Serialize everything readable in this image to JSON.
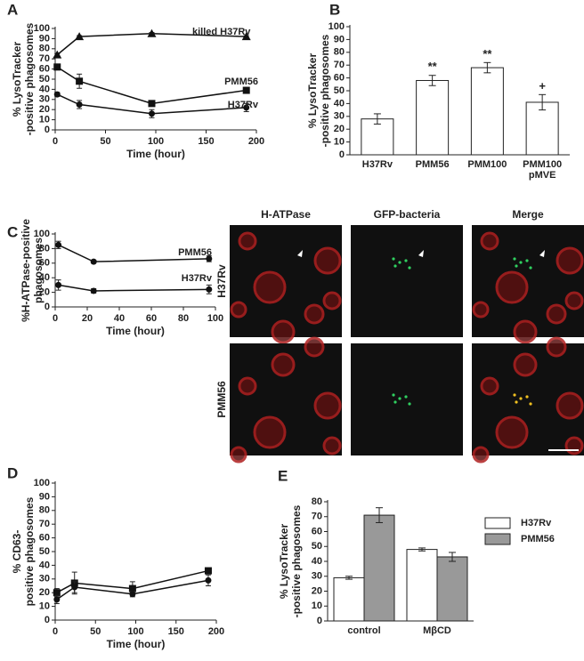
{
  "chart_data": [
    {
      "panel": "A",
      "type": "line",
      "ylabel": [
        "% LysoTracker",
        "-positive phagosomes"
      ],
      "xlabel": "Time (hour)",
      "x": [
        2,
        24,
        96,
        190
      ],
      "xlim": [
        0,
        200
      ],
      "xticks": [
        0,
        50,
        100,
        150,
        200
      ],
      "ylim": [
        0,
        100
      ],
      "yticks": [
        0,
        10,
        20,
        30,
        40,
        50,
        60,
        70,
        80,
        90,
        100
      ],
      "series": [
        {
          "name": "killed H37Rv",
          "marker": "triangle",
          "color": "#111111",
          "values": [
            74,
            92,
            95,
            92
          ],
          "errors": [
            1,
            1,
            1,
            1
          ]
        },
        {
          "name": "PMM56",
          "marker": "square",
          "color": "#111111",
          "values": [
            62,
            48,
            26,
            39
          ],
          "errors": [
            1,
            7,
            1,
            2
          ]
        },
        {
          "name": "H37Rv",
          "marker": "circle",
          "color": "#111111",
          "values": [
            35,
            25,
            16,
            22
          ],
          "errors": [
            2,
            4,
            4,
            4
          ]
        }
      ]
    },
    {
      "panel": "B",
      "type": "bar",
      "ylabel": [
        "% LysoTracker",
        "-positive phagosomes"
      ],
      "categories": [
        "H37Rv",
        "PMM56",
        "PMM100",
        "PMM100 pMVE"
      ],
      "values": [
        28,
        58,
        68,
        41
      ],
      "errors": [
        4,
        4,
        4,
        6
      ],
      "annotations": [
        null,
        "**",
        "**",
        "+"
      ],
      "color": "#ffffff",
      "ylim": [
        0,
        100
      ],
      "yticks": [
        0,
        10,
        20,
        30,
        40,
        50,
        60,
        70,
        80,
        90,
        100
      ]
    },
    {
      "panel": "C",
      "type": "line",
      "ylabel": [
        "%H-ATPase-positive",
        "phagosomes"
      ],
      "xlabel": "Time (hour)",
      "x": [
        2,
        24,
        96
      ],
      "xlim": [
        0,
        100
      ],
      "xticks": [
        0,
        20,
        40,
        60,
        80,
        100
      ],
      "ylim": [
        0,
        100
      ],
      "yticks": [
        0,
        20,
        40,
        60,
        80,
        100
      ],
      "series": [
        {
          "name": "PMM56",
          "marker": "circle",
          "color": "#111111",
          "values": [
            85,
            62,
            66
          ],
          "errors": [
            5,
            2,
            4
          ]
        },
        {
          "name": "H37Rv",
          "marker": "circle",
          "color": "#111111",
          "values": [
            30,
            22,
            24
          ],
          "errors": [
            7,
            3,
            6
          ]
        }
      ]
    },
    {
      "panel": "D",
      "type": "line",
      "ylabel": [
        "% CD63-",
        "positive phagosomes"
      ],
      "xlabel": "Time (hour)",
      "x": [
        2,
        24,
        96,
        190
      ],
      "xlim": [
        0,
        200
      ],
      "xticks": [
        0,
        50,
        100,
        150,
        200
      ],
      "ylim": [
        0,
        100
      ],
      "yticks": [
        0,
        10,
        20,
        30,
        40,
        50,
        60,
        70,
        80,
        90,
        100
      ],
      "series": [
        {
          "marker": "square",
          "color": "#111111",
          "values": [
            20,
            27,
            23,
            36
          ],
          "errors": [
            3,
            8,
            5,
            2
          ]
        },
        {
          "marker": "circle",
          "color": "#111111",
          "values": [
            15,
            24,
            19,
            29
          ],
          "errors": [
            3,
            4,
            2,
            4
          ]
        }
      ]
    },
    {
      "panel": "E",
      "type": "bar",
      "ylabel": [
        "% LysoTracker",
        "-positive phagosomes"
      ],
      "categories": [
        "control",
        "MβCD"
      ],
      "ylim": [
        0,
        80
      ],
      "yticks": [
        0,
        10,
        20,
        30,
        40,
        50,
        60,
        70,
        80
      ],
      "series": [
        {
          "name": "H37Rv",
          "color": "#ffffff",
          "values": [
            29,
            48
          ],
          "errors": [
            1,
            1
          ]
        },
        {
          "name": "PMM56",
          "color": "#999999",
          "values": [
            71,
            43
          ],
          "errors": [
            5,
            3
          ]
        }
      ]
    }
  ],
  "micrographs": {
    "columns": [
      "H-ATPase",
      "GFP-bacteria",
      "Merge"
    ],
    "rows": [
      "H37Rv",
      "PMM56"
    ]
  }
}
